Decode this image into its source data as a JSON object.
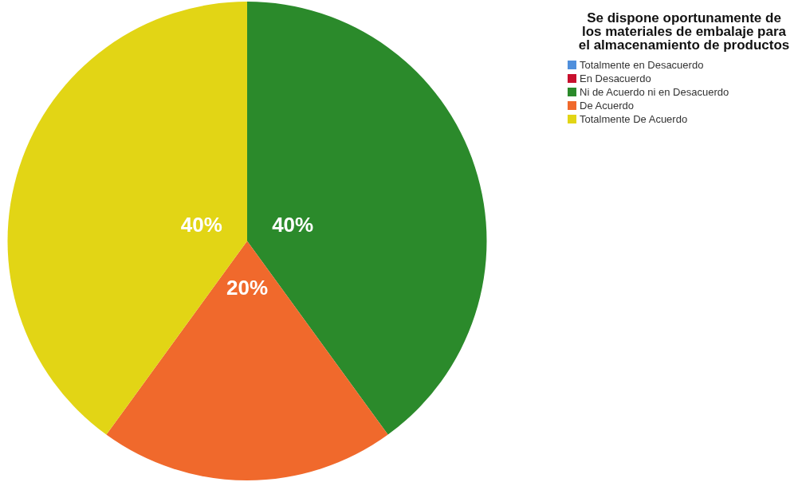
{
  "chart_data": {
    "type": "pie",
    "title": "Se dispone oportunamente de los materiales de embalaje para el almacenamiento de productos",
    "categories": [
      "Totalmente en Desacuerdo",
      "En Desacuerdo",
      "Ni de Acuerdo ni en Desacuerdo",
      "De Acuerdo",
      "Totalmente De Acuerdo"
    ],
    "values": [
      0,
      0,
      40,
      20,
      40
    ],
    "colors": [
      "#4f8fdc",
      "#c8102e",
      "#2b8a2b",
      "#f0692c",
      "#e2d515"
    ],
    "value_labels": [
      null,
      null,
      "40%",
      "20%",
      "40%"
    ],
    "legend": "top right"
  }
}
